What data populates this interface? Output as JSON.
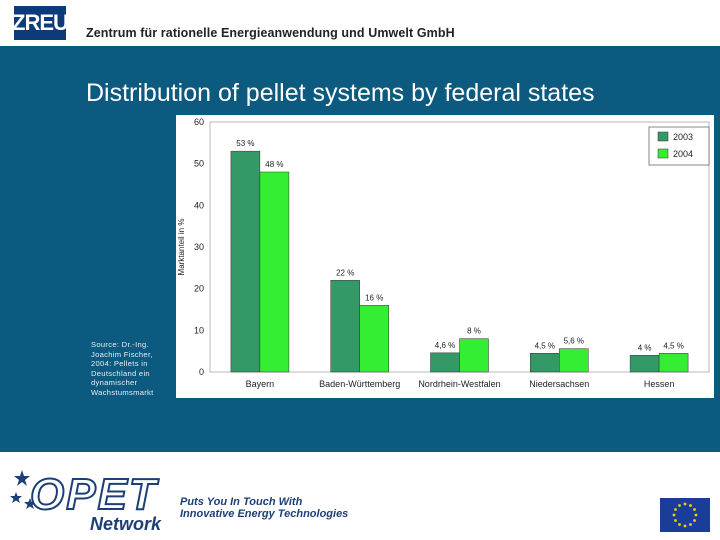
{
  "header": {
    "logo_text": "ZREU",
    "title": "Zentrum für rationelle Energieanwendung und Umwelt GmbH"
  },
  "slide": {
    "title": "Distribution of pellet systems by federal states",
    "source": "Source: Dr.-Ing. Joachim Fischer, 2004: Pellets in Deutschland ein dynamischer Wachstumsmarkt"
  },
  "footer": {
    "brand": "OPET",
    "brand_sub": "Network",
    "tagline_line1": "Puts You In Touch With",
    "tagline_line2": "Innovative Energy Technologies",
    "flag_icon": "eu-flag-icon"
  },
  "colors": {
    "header_bg": "#ffffff",
    "panel_bg": "#0c5a7f",
    "series_2003": "#339966",
    "series_2004": "#33ee33",
    "logo_blue": "#0d3a78"
  },
  "chart_data": {
    "type": "bar",
    "categories": [
      "Bayern",
      "Baden-Württemberg",
      "Nordrhein-Westfalen",
      "Niedersachsen",
      "Hessen"
    ],
    "series": [
      {
        "name": "2003",
        "values": [
          53,
          22,
          4.6,
          4.5,
          4
        ],
        "labels": [
          "53 %",
          "22 %",
          "4,6 %",
          "4,5 %",
          "4 %"
        ]
      },
      {
        "name": "2004",
        "values": [
          48,
          16,
          8,
          5.6,
          4.5
        ],
        "labels": [
          "48 %",
          "16 %",
          "8 %",
          "5,6 %",
          "4,5 %"
        ]
      }
    ],
    "ylabel": "Marktanteil in %",
    "ylim": [
      0,
      60
    ],
    "yticks": [
      0,
      10,
      20,
      30,
      40,
      50,
      60
    ],
    "legend_position": "top-right",
    "grid": false
  }
}
